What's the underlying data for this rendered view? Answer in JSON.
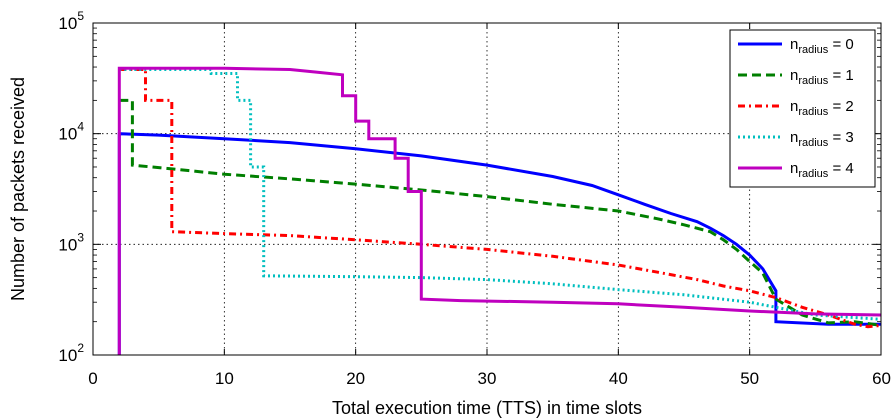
{
  "chart_data": {
    "type": "line",
    "xlabel": "Total execution time (TTS) in time slots",
    "ylabel": "Number of packets received",
    "xlim": [
      0,
      60
    ],
    "ylim": [
      100,
      100000
    ],
    "yscale": "log",
    "x_ticks": [
      "0",
      "10",
      "20",
      "30",
      "40",
      "50",
      "60"
    ],
    "y_ticks": [
      {
        "base": "10",
        "exp": "2",
        "value": 100
      },
      {
        "base": "10",
        "exp": "3",
        "value": 1000
      },
      {
        "base": "10",
        "exp": "4",
        "value": 10000
      },
      {
        "base": "10",
        "exp": "5",
        "value": 100000
      }
    ],
    "grid": true,
    "legend_position": "top-right",
    "series": [
      {
        "name": "n_radius = 0",
        "label_main": "n",
        "label_sub": "radius",
        "label_rest": " = 0",
        "color": "#0000ff",
        "style": "solid",
        "points": [
          [
            2,
            100
          ],
          [
            2,
            10000
          ],
          [
            5,
            9700
          ],
          [
            10,
            9000
          ],
          [
            15,
            8300
          ],
          [
            20,
            7300
          ],
          [
            25,
            6300
          ],
          [
            30,
            5200
          ],
          [
            35,
            4100
          ],
          [
            38,
            3400
          ],
          [
            40,
            2800
          ],
          [
            42,
            2300
          ],
          [
            44,
            1900
          ],
          [
            46,
            1600
          ],
          [
            47,
            1400
          ],
          [
            48,
            1200
          ],
          [
            49,
            1000
          ],
          [
            50,
            800
          ],
          [
            51,
            600
          ],
          [
            52,
            380
          ],
          [
            52,
            200
          ],
          [
            56,
            190
          ],
          [
            60,
            190
          ]
        ]
      },
      {
        "name": "n_radius = 1",
        "label_main": "n",
        "label_sub": "radius",
        "label_rest": " = 1",
        "color": "#007f00",
        "style": "dashed",
        "points": [
          [
            2,
            20000
          ],
          [
            3,
            20000
          ],
          [
            3,
            5200
          ],
          [
            6,
            4800
          ],
          [
            10,
            4300
          ],
          [
            15,
            3900
          ],
          [
            20,
            3500
          ],
          [
            25,
            3100
          ],
          [
            30,
            2700
          ],
          [
            35,
            2300
          ],
          [
            40,
            2000
          ],
          [
            43,
            1700
          ],
          [
            45,
            1500
          ],
          [
            47,
            1300
          ],
          [
            48,
            1100
          ],
          [
            49,
            900
          ],
          [
            50,
            700
          ],
          [
            51,
            550
          ],
          [
            52,
            320
          ],
          [
            54,
            230
          ],
          [
            56,
            195
          ],
          [
            58,
            200
          ],
          [
            60,
            185
          ]
        ]
      },
      {
        "name": "n_radius = 2",
        "label_main": "n",
        "label_sub": "radius",
        "label_rest": " = 2",
        "color": "#ff0000",
        "style": "dashdot",
        "points": [
          [
            2,
            38000
          ],
          [
            4,
            38000
          ],
          [
            4,
            20000
          ],
          [
            6,
            20000
          ],
          [
            6,
            1300
          ],
          [
            10,
            1250
          ],
          [
            15,
            1200
          ],
          [
            20,
            1100
          ],
          [
            25,
            1000
          ],
          [
            30,
            900
          ],
          [
            35,
            780
          ],
          [
            40,
            650
          ],
          [
            43,
            560
          ],
          [
            46,
            480
          ],
          [
            48,
            420
          ],
          [
            50,
            380
          ],
          [
            52,
            330
          ],
          [
            54,
            270
          ],
          [
            56,
            230
          ],
          [
            58,
            190
          ],
          [
            59,
            180
          ],
          [
            60,
            185
          ]
        ]
      },
      {
        "name": "n_radius = 3",
        "label_main": "n",
        "label_sub": "radius",
        "label_rest": " = 3",
        "color": "#00bfbf",
        "style": "dotted",
        "points": [
          [
            2,
            38000
          ],
          [
            9,
            38000
          ],
          [
            9,
            35000
          ],
          [
            11,
            35000
          ],
          [
            11,
            20000
          ],
          [
            12,
            20000
          ],
          [
            12,
            5000
          ],
          [
            13,
            5000
          ],
          [
            13,
            520
          ],
          [
            20,
            510
          ],
          [
            25,
            500
          ],
          [
            30,
            480
          ],
          [
            35,
            440
          ],
          [
            40,
            390
          ],
          [
            45,
            350
          ],
          [
            50,
            300
          ],
          [
            52,
            270
          ],
          [
            55,
            230
          ],
          [
            60,
            210
          ]
        ]
      },
      {
        "name": "n_radius = 4",
        "label_main": "n",
        "label_sub": "radius",
        "label_rest": " = 4",
        "color": "#bf00bf",
        "style": "solid",
        "points": [
          [
            2,
            100
          ],
          [
            2,
            39000
          ],
          [
            10,
            39000
          ],
          [
            15,
            38000
          ],
          [
            17,
            36000
          ],
          [
            19,
            34000
          ],
          [
            19,
            22000
          ],
          [
            20,
            22000
          ],
          [
            20,
            13000
          ],
          [
            21,
            13000
          ],
          [
            21,
            9000
          ],
          [
            23,
            9000
          ],
          [
            23,
            6000
          ],
          [
            24,
            6000
          ],
          [
            24,
            3000
          ],
          [
            25,
            3000
          ],
          [
            25,
            320
          ],
          [
            28,
            310
          ],
          [
            35,
            300
          ],
          [
            40,
            290
          ],
          [
            45,
            270
          ],
          [
            50,
            250
          ],
          [
            55,
            235
          ],
          [
            60,
            230
          ]
        ]
      }
    ]
  }
}
